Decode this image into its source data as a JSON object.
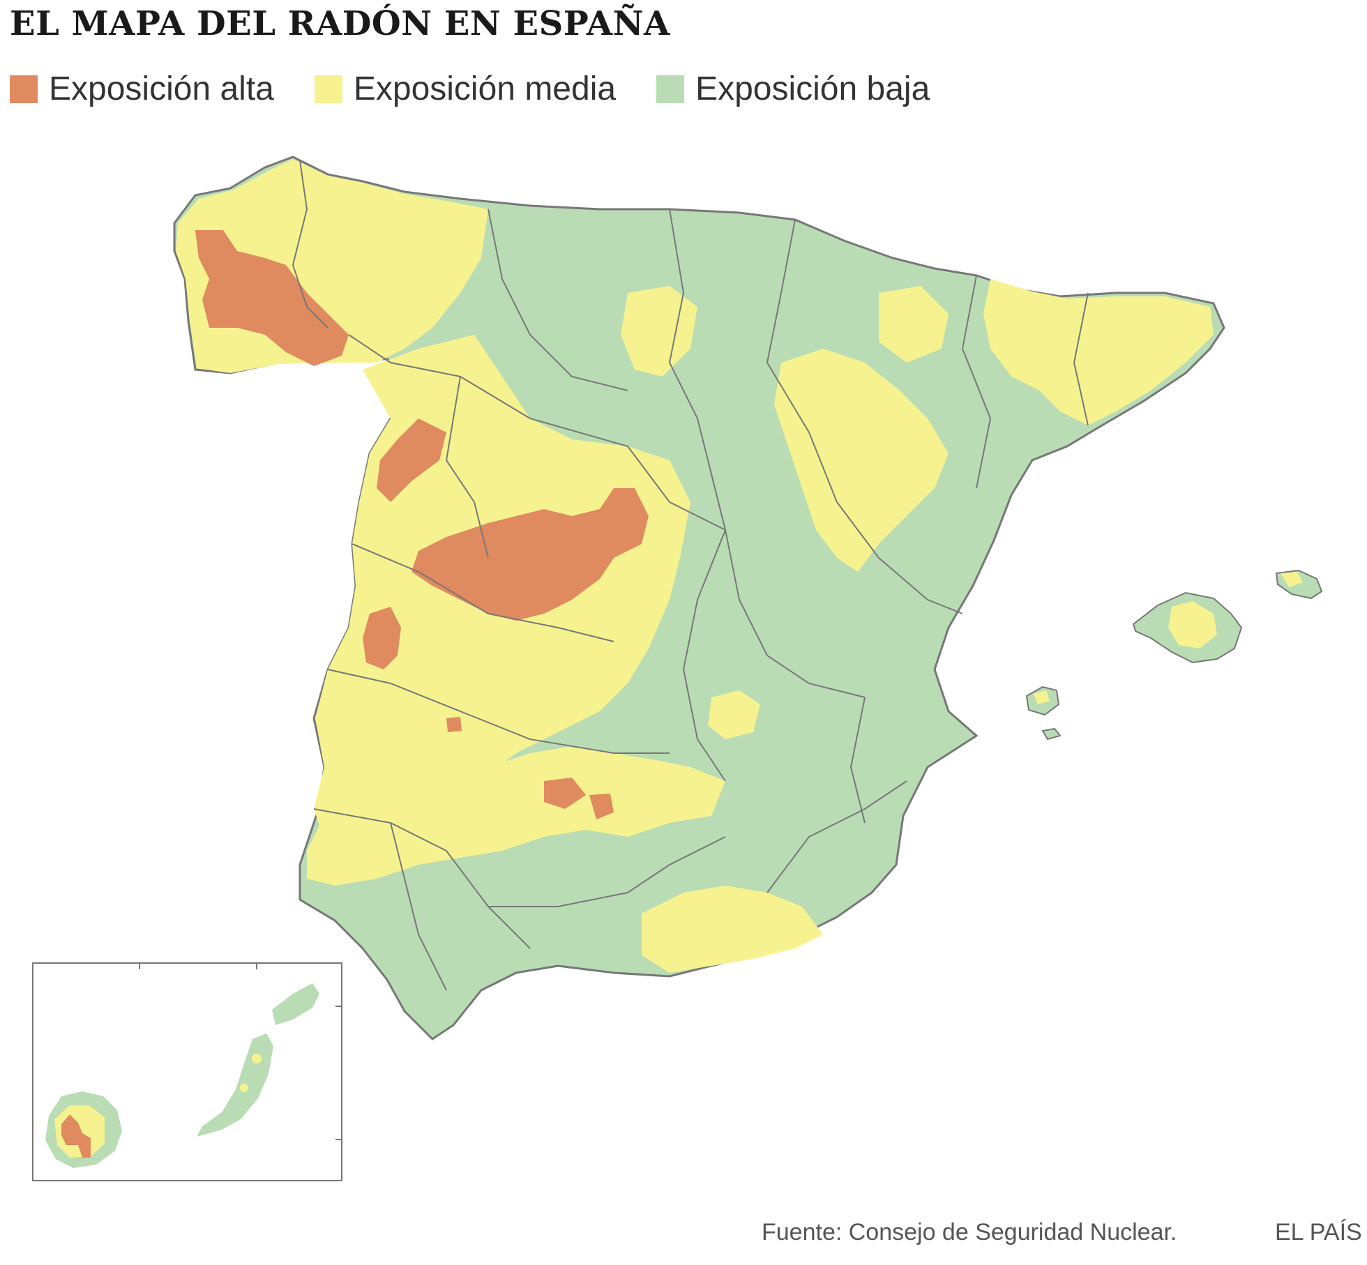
{
  "title": "EL MAPA DEL RADÓN EN ESPAÑA",
  "legend": [
    {
      "label": "Exposición alta",
      "color": "#e08a5f"
    },
    {
      "label": "Exposición media",
      "color": "#f6f28f"
    },
    {
      "label": "Exposición baja",
      "color": "#b9dcb5"
    }
  ],
  "colors": {
    "border": "#777777"
  },
  "source": "Fuente: Consejo de Seguridad Nuclear.",
  "brand": "EL PAÍS"
}
